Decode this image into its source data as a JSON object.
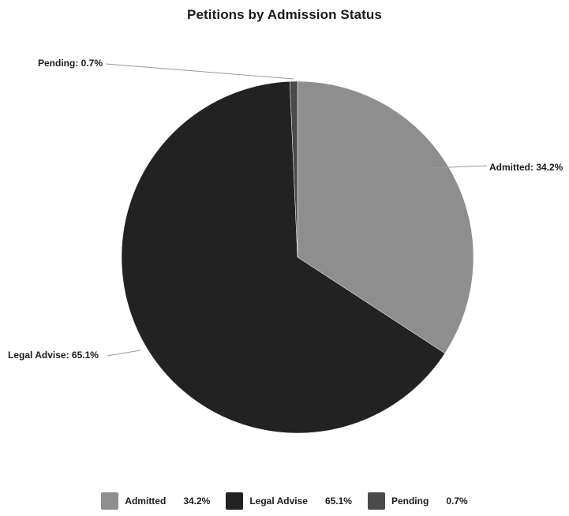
{
  "chart_data": {
    "type": "pie",
    "title": "Petitions by Admission Status",
    "slices": [
      {
        "label": "Admitted",
        "value": 34.2,
        "value_text": "34.2%",
        "slice_label": "Admitted: 34.2%",
        "color": "#8e8e8e"
      },
      {
        "label": "Legal Advise",
        "value": 65.1,
        "value_text": "65.1%",
        "slice_label": "Legal Advise: 65.1%",
        "color": "#222222"
      },
      {
        "label": "Pending",
        "value": 0.7,
        "value_text": "0.7%",
        "slice_label": "Pending: 0.7%",
        "color": "#4a4a4a"
      }
    ],
    "legend_position": "bottom"
  }
}
